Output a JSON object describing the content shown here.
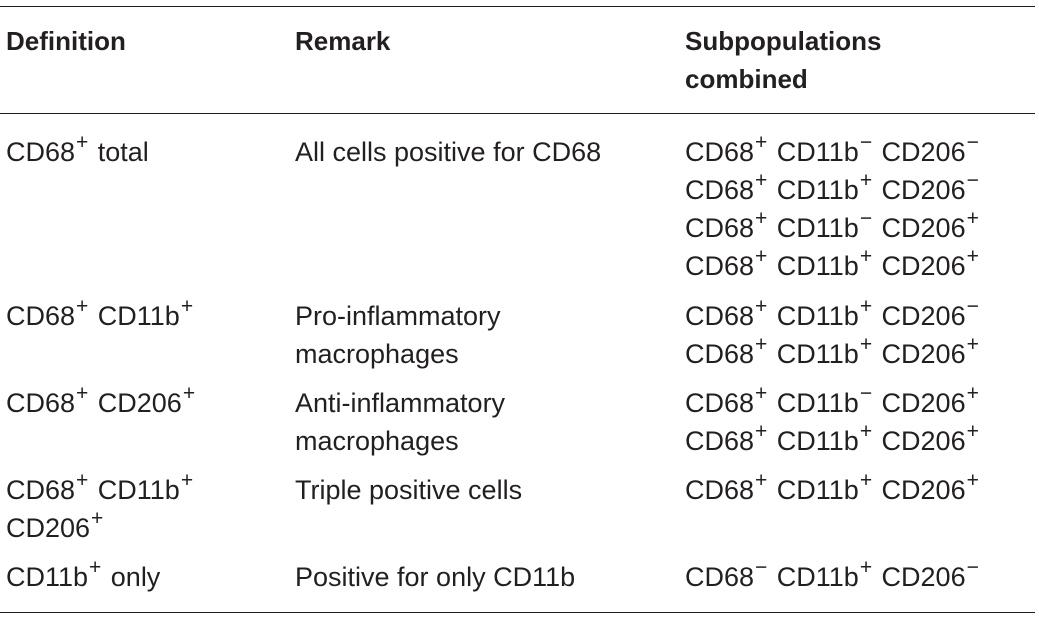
{
  "headers": {
    "definition": "Definition",
    "remark": "Remark",
    "subpopulations_line1": "Subpopulations",
    "subpopulations_line2": "combined"
  },
  "rows": [
    {
      "definition": [
        [
          [
            "CD68",
            "+"
          ],
          [
            "total",
            ""
          ]
        ]
      ],
      "remark": [
        "All cells positive for CD68"
      ],
      "subpopulations": [
        [
          [
            "CD68",
            "+"
          ],
          [
            "CD11b",
            "−"
          ],
          [
            "CD206",
            "−"
          ]
        ],
        [
          [
            "CD68",
            "+"
          ],
          [
            "CD11b",
            "+"
          ],
          [
            "CD206",
            "−"
          ]
        ],
        [
          [
            "CD68",
            "+"
          ],
          [
            "CD11b",
            "−"
          ],
          [
            "CD206",
            "+"
          ]
        ],
        [
          [
            "CD68",
            "+"
          ],
          [
            "CD11b",
            "+"
          ],
          [
            "CD206",
            "+"
          ]
        ]
      ]
    },
    {
      "definition": [
        [
          [
            "CD68",
            "+"
          ],
          [
            "CD11b",
            "+"
          ]
        ]
      ],
      "remark": [
        "Pro-inflammatory",
        "macrophages"
      ],
      "subpopulations": [
        [
          [
            "CD68",
            "+"
          ],
          [
            "CD11b",
            "+"
          ],
          [
            "CD206",
            "−"
          ]
        ],
        [
          [
            "CD68",
            "+"
          ],
          [
            "CD11b",
            "+"
          ],
          [
            "CD206",
            "+"
          ]
        ]
      ]
    },
    {
      "definition": [
        [
          [
            "CD68",
            "+"
          ],
          [
            "CD206",
            "+"
          ]
        ]
      ],
      "remark": [
        "Anti-inflammatory",
        "macrophages"
      ],
      "subpopulations": [
        [
          [
            "CD68",
            "+"
          ],
          [
            "CD11b",
            "−"
          ],
          [
            "CD206",
            "+"
          ]
        ],
        [
          [
            "CD68",
            "+"
          ],
          [
            "CD11b",
            "+"
          ],
          [
            "CD206",
            "+"
          ]
        ]
      ]
    },
    {
      "definition": [
        [
          [
            "CD68",
            "+"
          ],
          [
            "CD11b",
            "+"
          ]
        ],
        [
          [
            "CD206",
            "+"
          ]
        ]
      ],
      "remark": [
        "Triple positive cells"
      ],
      "subpopulations": [
        [
          [
            "CD68",
            "+"
          ],
          [
            "CD11b",
            "+"
          ],
          [
            "CD206",
            "+"
          ]
        ]
      ]
    },
    {
      "definition": [
        [
          [
            "CD11b",
            "+"
          ],
          [
            "only",
            ""
          ]
        ]
      ],
      "remark": [
        "Positive for only CD11b"
      ],
      "subpopulations": [
        [
          [
            "CD68",
            "−"
          ],
          [
            "CD11b",
            "+"
          ],
          [
            "CD206",
            "−"
          ]
        ]
      ]
    }
  ]
}
